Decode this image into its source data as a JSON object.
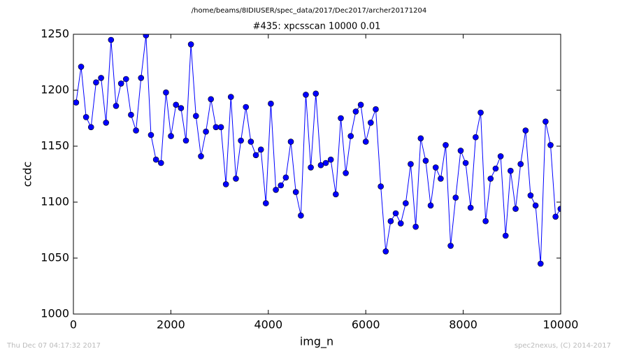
{
  "chart_data": {
    "type": "line",
    "suptitle": "/home/beams/8IDIUSER/spec_data/2017/Dec2017/archer20171204",
    "title": "#435: xpcsscan 10000 0.01",
    "x_label": "img_n",
    "y_label": "ccdc",
    "footer_left": "Thu Dec 07 04:17:32 2017",
    "footer_right": "spec2nexus, (C) 2014-2017",
    "x": [
      55,
      158,
      260,
      362,
      465,
      568,
      670,
      772,
      875,
      978,
      1080,
      1182,
      1285,
      1388,
      1490,
      1592,
      1695,
      1798,
      1900,
      2002,
      2105,
      2208,
      2310,
      2412,
      2515,
      2618,
      2720,
      2822,
      2925,
      3028,
      3130,
      3232,
      3335,
      3438,
      3540,
      3642,
      3745,
      3848,
      3950,
      4052,
      4155,
      4258,
      4360,
      4462,
      4565,
      4668,
      4770,
      4872,
      4975,
      5078,
      5180,
      5282,
      5385,
      5488,
      5590,
      5692,
      5795,
      5898,
      6000,
      6102,
      6205,
      6308,
      6410,
      6512,
      6615,
      6718,
      6820,
      6922,
      7025,
      7128,
      7230,
      7332,
      7435,
      7538,
      7640,
      7742,
      7845,
      7948,
      8050,
      8152,
      8255,
      8358,
      8460,
      8562,
      8665,
      8768,
      8870,
      8972,
      9075,
      9178,
      9280,
      9382,
      9485,
      9588,
      9690,
      9792,
      9895,
      9998
    ],
    "series": [
      {
        "name": "ccdc",
        "color": "#0000ff",
        "values": [
          1189,
          1221,
          1176,
          1167,
          1207,
          1211,
          1171,
          1245,
          1186,
          1206,
          1210,
          1178,
          1164,
          1211,
          1249,
          1160,
          1138,
          1135,
          1198,
          1159,
          1187,
          1184,
          1155,
          1241,
          1177,
          1141,
          1163,
          1192,
          1167,
          1167,
          1116,
          1194,
          1121,
          1155,
          1185,
          1154,
          1142,
          1147,
          1099,
          1188,
          1111,
          1115,
          1122,
          1154,
          1109,
          1088,
          1196,
          1131,
          1197,
          1133,
          1135,
          1138,
          1107,
          1175,
          1126,
          1159,
          1181,
          1187,
          1154,
          1171,
          1183,
          1114,
          1056,
          1083,
          1090,
          1081,
          1099,
          1134,
          1078,
          1157,
          1137,
          1097,
          1131,
          1121,
          1151,
          1061,
          1104,
          1146,
          1135,
          1095,
          1158,
          1180,
          1083,
          1121,
          1130,
          1141,
          1070,
          1128,
          1094,
          1134,
          1164,
          1106,
          1097,
          1045,
          1172,
          1151,
          1087,
          1094
        ]
      }
    ],
    "xlim": [
      0,
      10000
    ],
    "ylim": [
      1000,
      1250
    ],
    "xticks": [
      0,
      2000,
      4000,
      6000,
      8000,
      10000
    ],
    "yticks": [
      1000,
      1050,
      1100,
      1150,
      1200,
      1250
    ],
    "grid": false,
    "markers": true
  }
}
